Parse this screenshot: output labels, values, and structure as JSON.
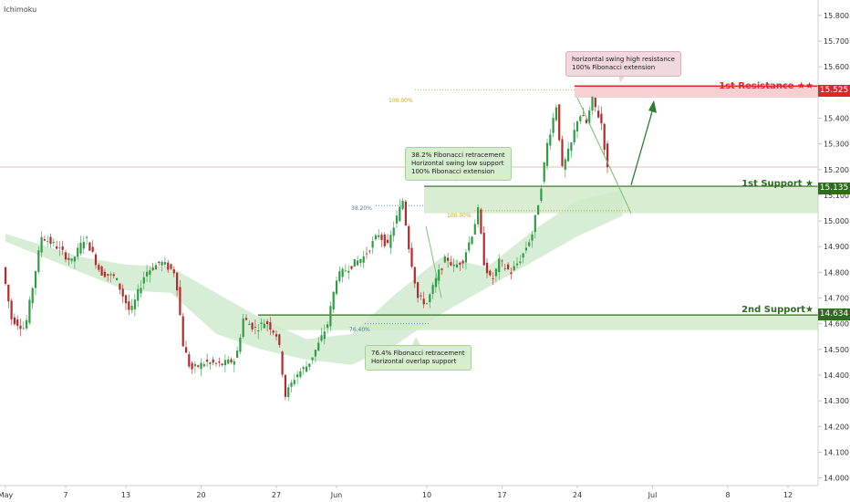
{
  "indicator_label": "Ichimoku",
  "levels": {
    "resistance1": {
      "label": "1st Resistance ★★",
      "price_text": "15.525",
      "value": 15.525,
      "color": "#e0252b"
    },
    "support1": {
      "label": "1st Support ★",
      "price_text": "15.135",
      "value": 15.135,
      "color": "#2e6b1f"
    },
    "support2": {
      "label": "2nd Support★",
      "price_text": "14.634",
      "value": 14.634,
      "color": "#2e6b1f"
    }
  },
  "annotations": {
    "resistance_note": "horizontal swing high resistance\n100% Fibonacci extension",
    "support1_note": "38.2% Fibonacci retracement\nHorizontal swing low support\n100% Fibonacci extension",
    "support2_note": "76.4% Fibonacci retracement\nHorizontal overlap support"
  },
  "fib_labels": {
    "top_100": "100.00%",
    "ret_382": "38.20%",
    "ext_100": "100.00%",
    "ret_764": "76.40%"
  },
  "colors": {
    "up": "#2e9e45",
    "down": "#b52a2a",
    "accent_green": "#4caf50",
    "accent_red": "#e0252b"
  },
  "chart_data": {
    "type": "candlestick",
    "y_ticks": [
      "15.800",
      "15.700",
      "15.600",
      "15.500",
      "15.400",
      "15.300",
      "15.200",
      "15.100",
      "15.000",
      "14.900",
      "14.800",
      "14.700",
      "14.600",
      "14.500",
      "14.400",
      "14.300",
      "14.200",
      "14.100",
      "14.000"
    ],
    "ylim": [
      13.97,
      15.86
    ],
    "x_ticks": [
      {
        "label": "May",
        "day": 0
      },
      {
        "label": "7",
        "day": 4
      },
      {
        "label": "13",
        "day": 8
      },
      {
        "label": "20",
        "day": 13
      },
      {
        "label": "27",
        "day": 18
      },
      {
        "label": "Jun",
        "day": 22
      },
      {
        "label": "10",
        "day": 28
      },
      {
        "label": "17",
        "day": 33
      },
      {
        "label": "24",
        "day": 38
      },
      {
        "label": "Jul",
        "day": 43
      },
      {
        "label": "8",
        "day": 48
      },
      {
        "label": "12",
        "day": 52
      }
    ],
    "anchors": [
      {
        "day": 0,
        "price": 14.82
      },
      {
        "day": 0.6,
        "price": 14.62
      },
      {
        "day": 1.5,
        "price": 14.58
      },
      {
        "day": 2.6,
        "price": 14.94
      },
      {
        "day": 3.6,
        "price": 14.9
      },
      {
        "day": 4.6,
        "price": 14.84
      },
      {
        "day": 5.5,
        "price": 14.94
      },
      {
        "day": 6.5,
        "price": 14.8
      },
      {
        "day": 7.5,
        "price": 14.78
      },
      {
        "day": 8.5,
        "price": 14.64
      },
      {
        "day": 9.5,
        "price": 14.8
      },
      {
        "day": 10.5,
        "price": 14.84
      },
      {
        "day": 11.5,
        "price": 14.8
      },
      {
        "day": 12.0,
        "price": 14.52
      },
      {
        "day": 12.5,
        "price": 14.42
      },
      {
        "day": 13.5,
        "price": 14.45
      },
      {
        "day": 14.5,
        "price": 14.44
      },
      {
        "day": 15.5,
        "price": 14.46
      },
      {
        "day": 16.0,
        "price": 14.62
      },
      {
        "day": 16.8,
        "price": 14.58
      },
      {
        "day": 17.5,
        "price": 14.61
      },
      {
        "day": 18.3,
        "price": 14.55
      },
      {
        "day": 18.8,
        "price": 14.32
      },
      {
        "day": 19.5,
        "price": 14.4
      },
      {
        "day": 20.3,
        "price": 14.44
      },
      {
        "day": 21.0,
        "price": 14.52
      },
      {
        "day": 21.6,
        "price": 14.6
      },
      {
        "day": 22.2,
        "price": 14.78
      },
      {
        "day": 23.0,
        "price": 14.82
      },
      {
        "day": 24.0,
        "price": 14.86
      },
      {
        "day": 25.0,
        "price": 14.95
      },
      {
        "day": 25.6,
        "price": 14.9
      },
      {
        "day": 26.0,
        "price": 14.98
      },
      {
        "day": 26.6,
        "price": 15.08
      },
      {
        "day": 27.0,
        "price": 14.9
      },
      {
        "day": 27.6,
        "price": 14.7
      },
      {
        "day": 28.2,
        "price": 14.68
      },
      {
        "day": 29.0,
        "price": 14.8
      },
      {
        "day": 29.5,
        "price": 14.86
      },
      {
        "day": 30.0,
        "price": 14.82
      },
      {
        "day": 30.6,
        "price": 14.85
      },
      {
        "day": 31.2,
        "price": 14.95
      },
      {
        "day": 31.6,
        "price": 15.04
      },
      {
        "day": 32.0,
        "price": 14.84
      },
      {
        "day": 32.5,
        "price": 14.76
      },
      {
        "day": 33.0,
        "price": 14.84
      },
      {
        "day": 33.8,
        "price": 14.8
      },
      {
        "day": 34.5,
        "price": 14.86
      },
      {
        "day": 35.2,
        "price": 14.95
      },
      {
        "day": 35.7,
        "price": 15.1
      },
      {
        "day": 36.2,
        "price": 15.3
      },
      {
        "day": 36.8,
        "price": 15.45
      },
      {
        "day": 37.2,
        "price": 15.2
      },
      {
        "day": 37.8,
        "price": 15.3
      },
      {
        "day": 38.3,
        "price": 15.42
      },
      {
        "day": 38.8,
        "price": 15.38
      },
      {
        "day": 39.2,
        "price": 15.47
      },
      {
        "day": 39.8,
        "price": 15.38
      },
      {
        "day": 40.2,
        "price": 15.2
      }
    ],
    "cloud_points": [
      {
        "day": 0,
        "a": 14.95,
        "b": 14.92
      },
      {
        "day": 5,
        "a": 14.86,
        "b": 14.8
      },
      {
        "day": 8,
        "a": 14.83,
        "b": 14.73
      },
      {
        "day": 11,
        "a": 14.82,
        "b": 14.72
      },
      {
        "day": 14,
        "a": 14.72,
        "b": 14.56
      },
      {
        "day": 17,
        "a": 14.62,
        "b": 14.5
      },
      {
        "day": 20,
        "a": 14.54,
        "b": 14.46
      },
      {
        "day": 23,
        "a": 14.56,
        "b": 14.44
      },
      {
        "day": 26,
        "a": 14.72,
        "b": 14.52
      },
      {
        "day": 29,
        "a": 14.86,
        "b": 14.64
      },
      {
        "day": 32,
        "a": 14.82,
        "b": 14.74
      },
      {
        "day": 35,
        "a": 14.96,
        "b": 14.84
      },
      {
        "day": 38,
        "a": 15.08,
        "b": 14.94
      },
      {
        "day": 41,
        "a": 15.12,
        "b": 15.02
      }
    ]
  }
}
